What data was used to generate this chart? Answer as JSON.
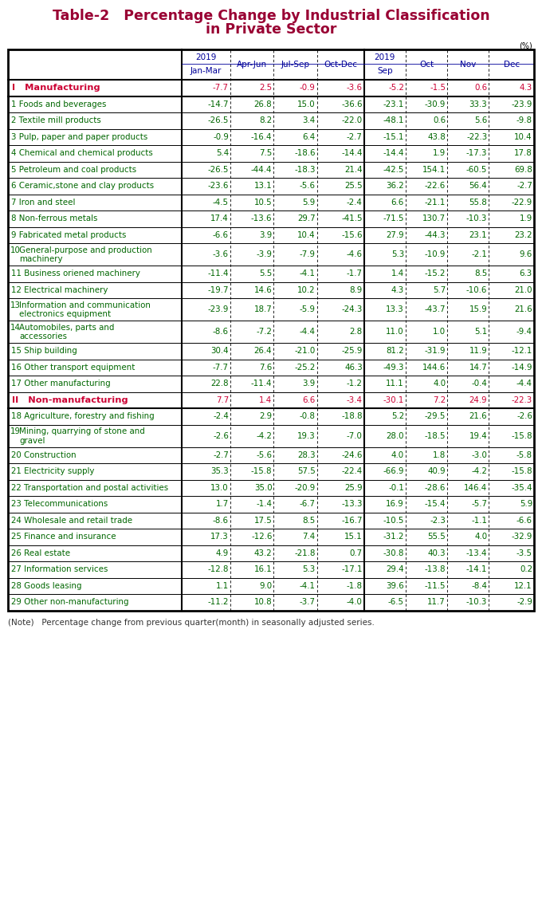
{
  "title_line1": "Table-2   Percentage Change by Industrial Classification",
  "title_line2": "in Private Sector",
  "title_color": "#990033",
  "header_color": "#000099",
  "unit_label": "(%)",
  "rows": [
    {
      "label": "I   Manufacturing",
      "values": [
        "-7.7",
        "2.5",
        "-0.9",
        "-3.6",
        "-5.2",
        "-1.5",
        "0.6",
        "4.3"
      ],
      "label_color": "#cc0033",
      "value_color": "#cc0033",
      "is_section": true,
      "two_line": false
    },
    {
      "label": "1 Foods and beverages",
      "values": [
        "-14.7",
        "26.8",
        "15.0",
        "-36.6",
        "-23.1",
        "-30.9",
        "33.3",
        "-23.9"
      ],
      "label_color": "#006600",
      "value_color": "#006600",
      "is_section": false,
      "two_line": false
    },
    {
      "label": "2 Textile mill products",
      "values": [
        "-26.5",
        "8.2",
        "3.4",
        "-22.0",
        "-48.1",
        "0.6",
        "5.6",
        "-9.8"
      ],
      "label_color": "#006600",
      "value_color": "#006600",
      "is_section": false,
      "two_line": false
    },
    {
      "label": "3 Pulp, paper and paper products",
      "values": [
        "-0.9",
        "-16.4",
        "6.4",
        "-2.7",
        "-15.1",
        "43.8",
        "-22.3",
        "10.4"
      ],
      "label_color": "#006600",
      "value_color": "#006600",
      "is_section": false,
      "two_line": false
    },
    {
      "label": "4 Chemical and chemical products",
      "values": [
        "5.4",
        "7.5",
        "-18.6",
        "-14.4",
        "-14.4",
        "1.9",
        "-17.3",
        "17.8"
      ],
      "label_color": "#006600",
      "value_color": "#006600",
      "is_section": false,
      "two_line": false
    },
    {
      "label": "5 Petroleum and coal products",
      "values": [
        "-26.5",
        "-44.4",
        "-18.3",
        "21.4",
        "-42.5",
        "154.1",
        "-60.5",
        "69.8"
      ],
      "label_color": "#006600",
      "value_color": "#006600",
      "is_section": false,
      "two_line": false
    },
    {
      "label": "6 Ceramic,stone and clay products",
      "values": [
        "-23.6",
        "13.1",
        "-5.6",
        "25.5",
        "36.2",
        "-22.6",
        "56.4",
        "-2.7"
      ],
      "label_color": "#006600",
      "value_color": "#006600",
      "is_section": false,
      "two_line": false
    },
    {
      "label": "7 Iron and steel",
      "values": [
        "-4.5",
        "10.5",
        "5.9",
        "-2.4",
        "6.6",
        "-21.1",
        "55.8",
        "-22.9"
      ],
      "label_color": "#006600",
      "value_color": "#006600",
      "is_section": false,
      "two_line": false
    },
    {
      "label": "8 Non-ferrous metals",
      "values": [
        "17.4",
        "-13.6",
        "29.7",
        "-41.5",
        "-71.5",
        "130.7",
        "-10.3",
        "1.9"
      ],
      "label_color": "#006600",
      "value_color": "#006600",
      "is_section": false,
      "two_line": false
    },
    {
      "label": "9 Fabricated metal products",
      "values": [
        "-6.6",
        "3.9",
        "10.4",
        "-15.6",
        "27.9",
        "-44.3",
        "23.1",
        "23.2"
      ],
      "label_color": "#006600",
      "value_color": "#006600",
      "is_section": false,
      "two_line": false
    },
    {
      "label": "10 General-purpose and production\nmachinery",
      "values": [
        "-3.6",
        "-3.9",
        "-7.9",
        "-4.6",
        "5.3",
        "-10.9",
        "-2.1",
        "9.6"
      ],
      "label_color": "#006600",
      "value_color": "#006600",
      "is_section": false,
      "two_line": true
    },
    {
      "label": "11 Business oriened machinery",
      "values": [
        "-11.4",
        "5.5",
        "-4.1",
        "-1.7",
        "1.4",
        "-15.2",
        "8.5",
        "6.3"
      ],
      "label_color": "#006600",
      "value_color": "#006600",
      "is_section": false,
      "two_line": false
    },
    {
      "label": "12 Electrical machinery",
      "values": [
        "-19.7",
        "14.6",
        "10.2",
        "8.9",
        "4.3",
        "5.7",
        "-10.6",
        "21.0"
      ],
      "label_color": "#006600",
      "value_color": "#006600",
      "is_section": false,
      "two_line": false
    },
    {
      "label": "13 Information and communication\nelectronics equipment",
      "values": [
        "-23.9",
        "18.7",
        "-5.9",
        "-24.3",
        "13.3",
        "-43.7",
        "15.9",
        "21.6"
      ],
      "label_color": "#006600",
      "value_color": "#006600",
      "is_section": false,
      "two_line": true
    },
    {
      "label": "14 Automobiles, parts and\naccessories",
      "values": [
        "-8.6",
        "-7.2",
        "-4.4",
        "2.8",
        "11.0",
        "1.0",
        "5.1",
        "-9.4"
      ],
      "label_color": "#006600",
      "value_color": "#006600",
      "is_section": false,
      "two_line": true
    },
    {
      "label": "15 Ship building",
      "values": [
        "30.4",
        "26.4",
        "-21.0",
        "-25.9",
        "81.2",
        "-31.9",
        "11.9",
        "-12.1"
      ],
      "label_color": "#006600",
      "value_color": "#006600",
      "is_section": false,
      "two_line": false
    },
    {
      "label": "16 Other transport equipment",
      "values": [
        "-7.7",
        "7.6",
        "-25.2",
        "46.3",
        "-49.3",
        "144.6",
        "14.7",
        "-14.9"
      ],
      "label_color": "#006600",
      "value_color": "#006600",
      "is_section": false,
      "two_line": false
    },
    {
      "label": "17 Other manufacturing",
      "values": [
        "22.8",
        "-11.4",
        "3.9",
        "-1.2",
        "11.1",
        "4.0",
        "-0.4",
        "-4.4"
      ],
      "label_color": "#006600",
      "value_color": "#006600",
      "is_section": false,
      "two_line": false
    },
    {
      "label": "II   Non-manufacturing",
      "values": [
        "7.7",
        "1.4",
        "6.6",
        "-3.4",
        "-30.1",
        "7.2",
        "24.9",
        "-22.3"
      ],
      "label_color": "#cc0033",
      "value_color": "#cc0033",
      "is_section": true,
      "two_line": false
    },
    {
      "label": "18 Agriculture, forestry and fishing",
      "values": [
        "-2.4",
        "2.9",
        "-0.8",
        "-18.8",
        "5.2",
        "-29.5",
        "21.6",
        "-2.6"
      ],
      "label_color": "#006600",
      "value_color": "#006600",
      "is_section": false,
      "two_line": false
    },
    {
      "label": "19 Mining, quarrying of stone and\ngravel",
      "values": [
        "-2.6",
        "-4.2",
        "19.3",
        "-7.0",
        "28.0",
        "-18.5",
        "19.4",
        "-15.8"
      ],
      "label_color": "#006600",
      "value_color": "#006600",
      "is_section": false,
      "two_line": true
    },
    {
      "label": "20 Construction",
      "values": [
        "-2.7",
        "-5.6",
        "28.3",
        "-24.6",
        "4.0",
        "1.8",
        "-3.0",
        "-5.8"
      ],
      "label_color": "#006600",
      "value_color": "#006600",
      "is_section": false,
      "two_line": false
    },
    {
      "label": "21 Electricity supply",
      "values": [
        "35.3",
        "-15.8",
        "57.5",
        "-22.4",
        "-66.9",
        "40.9",
        "-4.2",
        "-15.8"
      ],
      "label_color": "#006600",
      "value_color": "#006600",
      "is_section": false,
      "two_line": false
    },
    {
      "label": "22 Transportation and postal activities",
      "values": [
        "13.0",
        "35.0",
        "-20.9",
        "25.9",
        "-0.1",
        "-28.6",
        "146.4",
        "-35.4"
      ],
      "label_color": "#006600",
      "value_color": "#006600",
      "is_section": false,
      "two_line": false
    },
    {
      "label": "23 Telecommunications",
      "values": [
        "1.7",
        "-1.4",
        "-6.7",
        "-13.3",
        "16.9",
        "-15.4",
        "-5.7",
        "5.9"
      ],
      "label_color": "#006600",
      "value_color": "#006600",
      "is_section": false,
      "two_line": false
    },
    {
      "label": "24 Wholesale and retail trade",
      "values": [
        "-8.6",
        "17.5",
        "8.5",
        "-16.7",
        "-10.5",
        "-2.3",
        "-1.1",
        "-6.6"
      ],
      "label_color": "#006600",
      "value_color": "#006600",
      "is_section": false,
      "two_line": false
    },
    {
      "label": "25 Finance and insurance",
      "values": [
        "17.3",
        "-12.6",
        "7.4",
        "15.1",
        "-31.2",
        "55.5",
        "4.0",
        "-32.9"
      ],
      "label_color": "#006600",
      "value_color": "#006600",
      "is_section": false,
      "two_line": false
    },
    {
      "label": "26 Real estate",
      "values": [
        "4.9",
        "43.2",
        "-21.8",
        "0.7",
        "-30.8",
        "40.3",
        "-13.4",
        "-3.5"
      ],
      "label_color": "#006600",
      "value_color": "#006600",
      "is_section": false,
      "two_line": false
    },
    {
      "label": "27 Information services",
      "values": [
        "-12.8",
        "16.1",
        "5.3",
        "-17.1",
        "29.4",
        "-13.8",
        "-14.1",
        "0.2"
      ],
      "label_color": "#006600",
      "value_color": "#006600",
      "is_section": false,
      "two_line": false
    },
    {
      "label": "28 Goods leasing",
      "values": [
        "1.1",
        "9.0",
        "-4.1",
        "-1.8",
        "39.6",
        "-11.5",
        "-8.4",
        "12.1"
      ],
      "label_color": "#006600",
      "value_color": "#006600",
      "is_section": false,
      "two_line": false
    },
    {
      "label": "29 Other non-manufacturing",
      "values": [
        "-11.2",
        "10.8",
        "-3.7",
        "-4.0",
        "-6.5",
        "11.7",
        "-10.3",
        "-2.9"
      ],
      "label_color": "#006600",
      "value_color": "#006600",
      "is_section": false,
      "two_line": false
    }
  ],
  "note": "(Note)   Percentage change from previous quarter(month) in seasonally adjusted series.",
  "bg_color": "#ffffff"
}
